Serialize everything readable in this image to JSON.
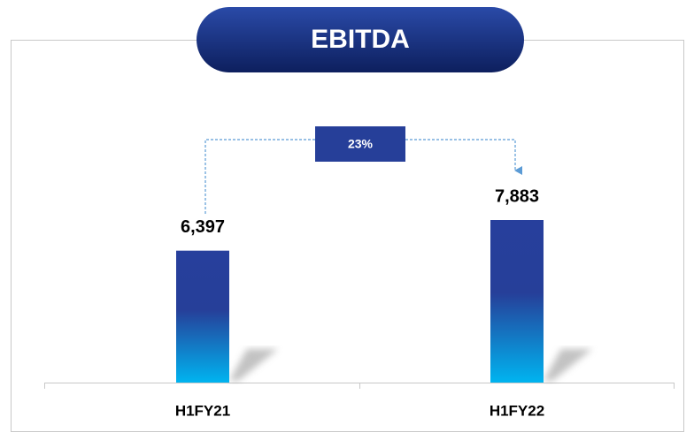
{
  "chart_data": {
    "type": "bar",
    "title": "EBITDA",
    "categories": [
      "H1FY21",
      "H1FY22"
    ],
    "values": [
      6397,
      7883
    ],
    "value_labels": [
      "6,397",
      "7,883"
    ],
    "annotation": "23%"
  }
}
